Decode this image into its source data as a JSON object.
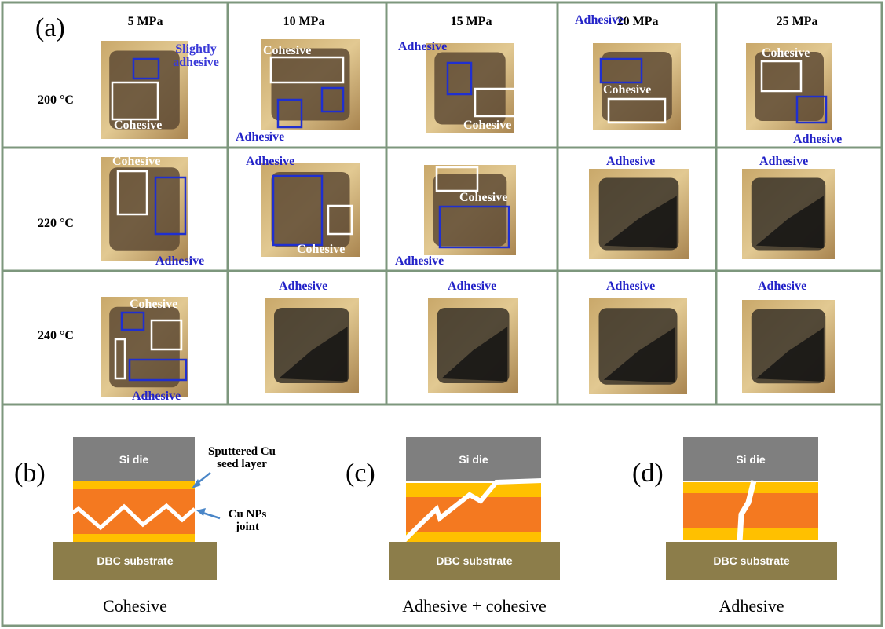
{
  "panel_a": {
    "label": "(a)",
    "columns": [
      "5 MPa",
      "10 MPa",
      "15 MPa",
      "20 MPa",
      "25 MPa"
    ],
    "rows": [
      {
        "temperature": "200 °C",
        "cells": [
          {
            "labels": [
              {
                "text": "Slightly adhesive",
                "color": "#3a3ad8"
              },
              {
                "text": "Cohesive",
                "color": "#ffffff"
              }
            ]
          },
          {
            "labels": [
              {
                "text": "Cohesive",
                "color": "#ffffff"
              },
              {
                "text": "Adhesive",
                "color": "#2323c8"
              }
            ]
          },
          {
            "labels": [
              {
                "text": "Adhesive",
                "color": "#2323c8"
              },
              {
                "text": "Cohesive",
                "color": "#ffffff"
              }
            ]
          },
          {
            "labels": [
              {
                "text": "Adhesive",
                "color": "#2323c8"
              },
              {
                "text": "Cohesive",
                "color": "#ffffff"
              }
            ]
          },
          {
            "labels": [
              {
                "text": "Cohesive",
                "color": "#ffffff"
              },
              {
                "text": "Adhesive",
                "color": "#2323c8"
              }
            ]
          }
        ]
      },
      {
        "temperature": "220 °C",
        "cells": [
          {
            "labels": [
              {
                "text": "Cohesive",
                "color": "#ffffff"
              },
              {
                "text": "Adhesive",
                "color": "#2323c8"
              }
            ]
          },
          {
            "labels": [
              {
                "text": "Adhesive",
                "color": "#2323c8"
              },
              {
                "text": "Cohesive",
                "color": "#ffffff"
              }
            ]
          },
          {
            "labels": [
              {
                "text": "Cohesive",
                "color": "#ffffff"
              },
              {
                "text": "Adhesive",
                "color": "#2323c8"
              }
            ]
          },
          {
            "labels": [
              {
                "text": "Adhesive",
                "color": "#2323c8"
              }
            ]
          },
          {
            "labels": [
              {
                "text": "Adhesive",
                "color": "#2323c8"
              }
            ]
          }
        ]
      },
      {
        "temperature": "240 °C",
        "cells": [
          {
            "labels": [
              {
                "text": "Cohesive",
                "color": "#ffffff"
              },
              {
                "text": "Adhesive",
                "color": "#2323c8"
              }
            ]
          },
          {
            "labels": [
              {
                "text": "Adhesive",
                "color": "#2323c8"
              }
            ]
          },
          {
            "labels": [
              {
                "text": "Adhesive",
                "color": "#2323c8"
              }
            ]
          },
          {
            "labels": [
              {
                "text": "Adhesive",
                "color": "#2323c8"
              }
            ]
          },
          {
            "labels": [
              {
                "text": "Adhesive",
                "color": "#2323c8"
              }
            ]
          }
        ]
      }
    ]
  },
  "panels": [
    {
      "label": "(b)",
      "die": "Si die",
      "substrate": "DBC substrate",
      "caption": "Cohesive",
      "annotations": [
        "Sputtered Cu seed layer",
        "Cu NPs joint"
      ]
    },
    {
      "label": "(c)",
      "die": "Si die",
      "substrate": "DBC substrate",
      "caption": "Adhesive + cohesive"
    },
    {
      "label": "(d)",
      "die": "Si die",
      "substrate": "DBC substrate",
      "caption": "Adhesive"
    }
  ]
}
